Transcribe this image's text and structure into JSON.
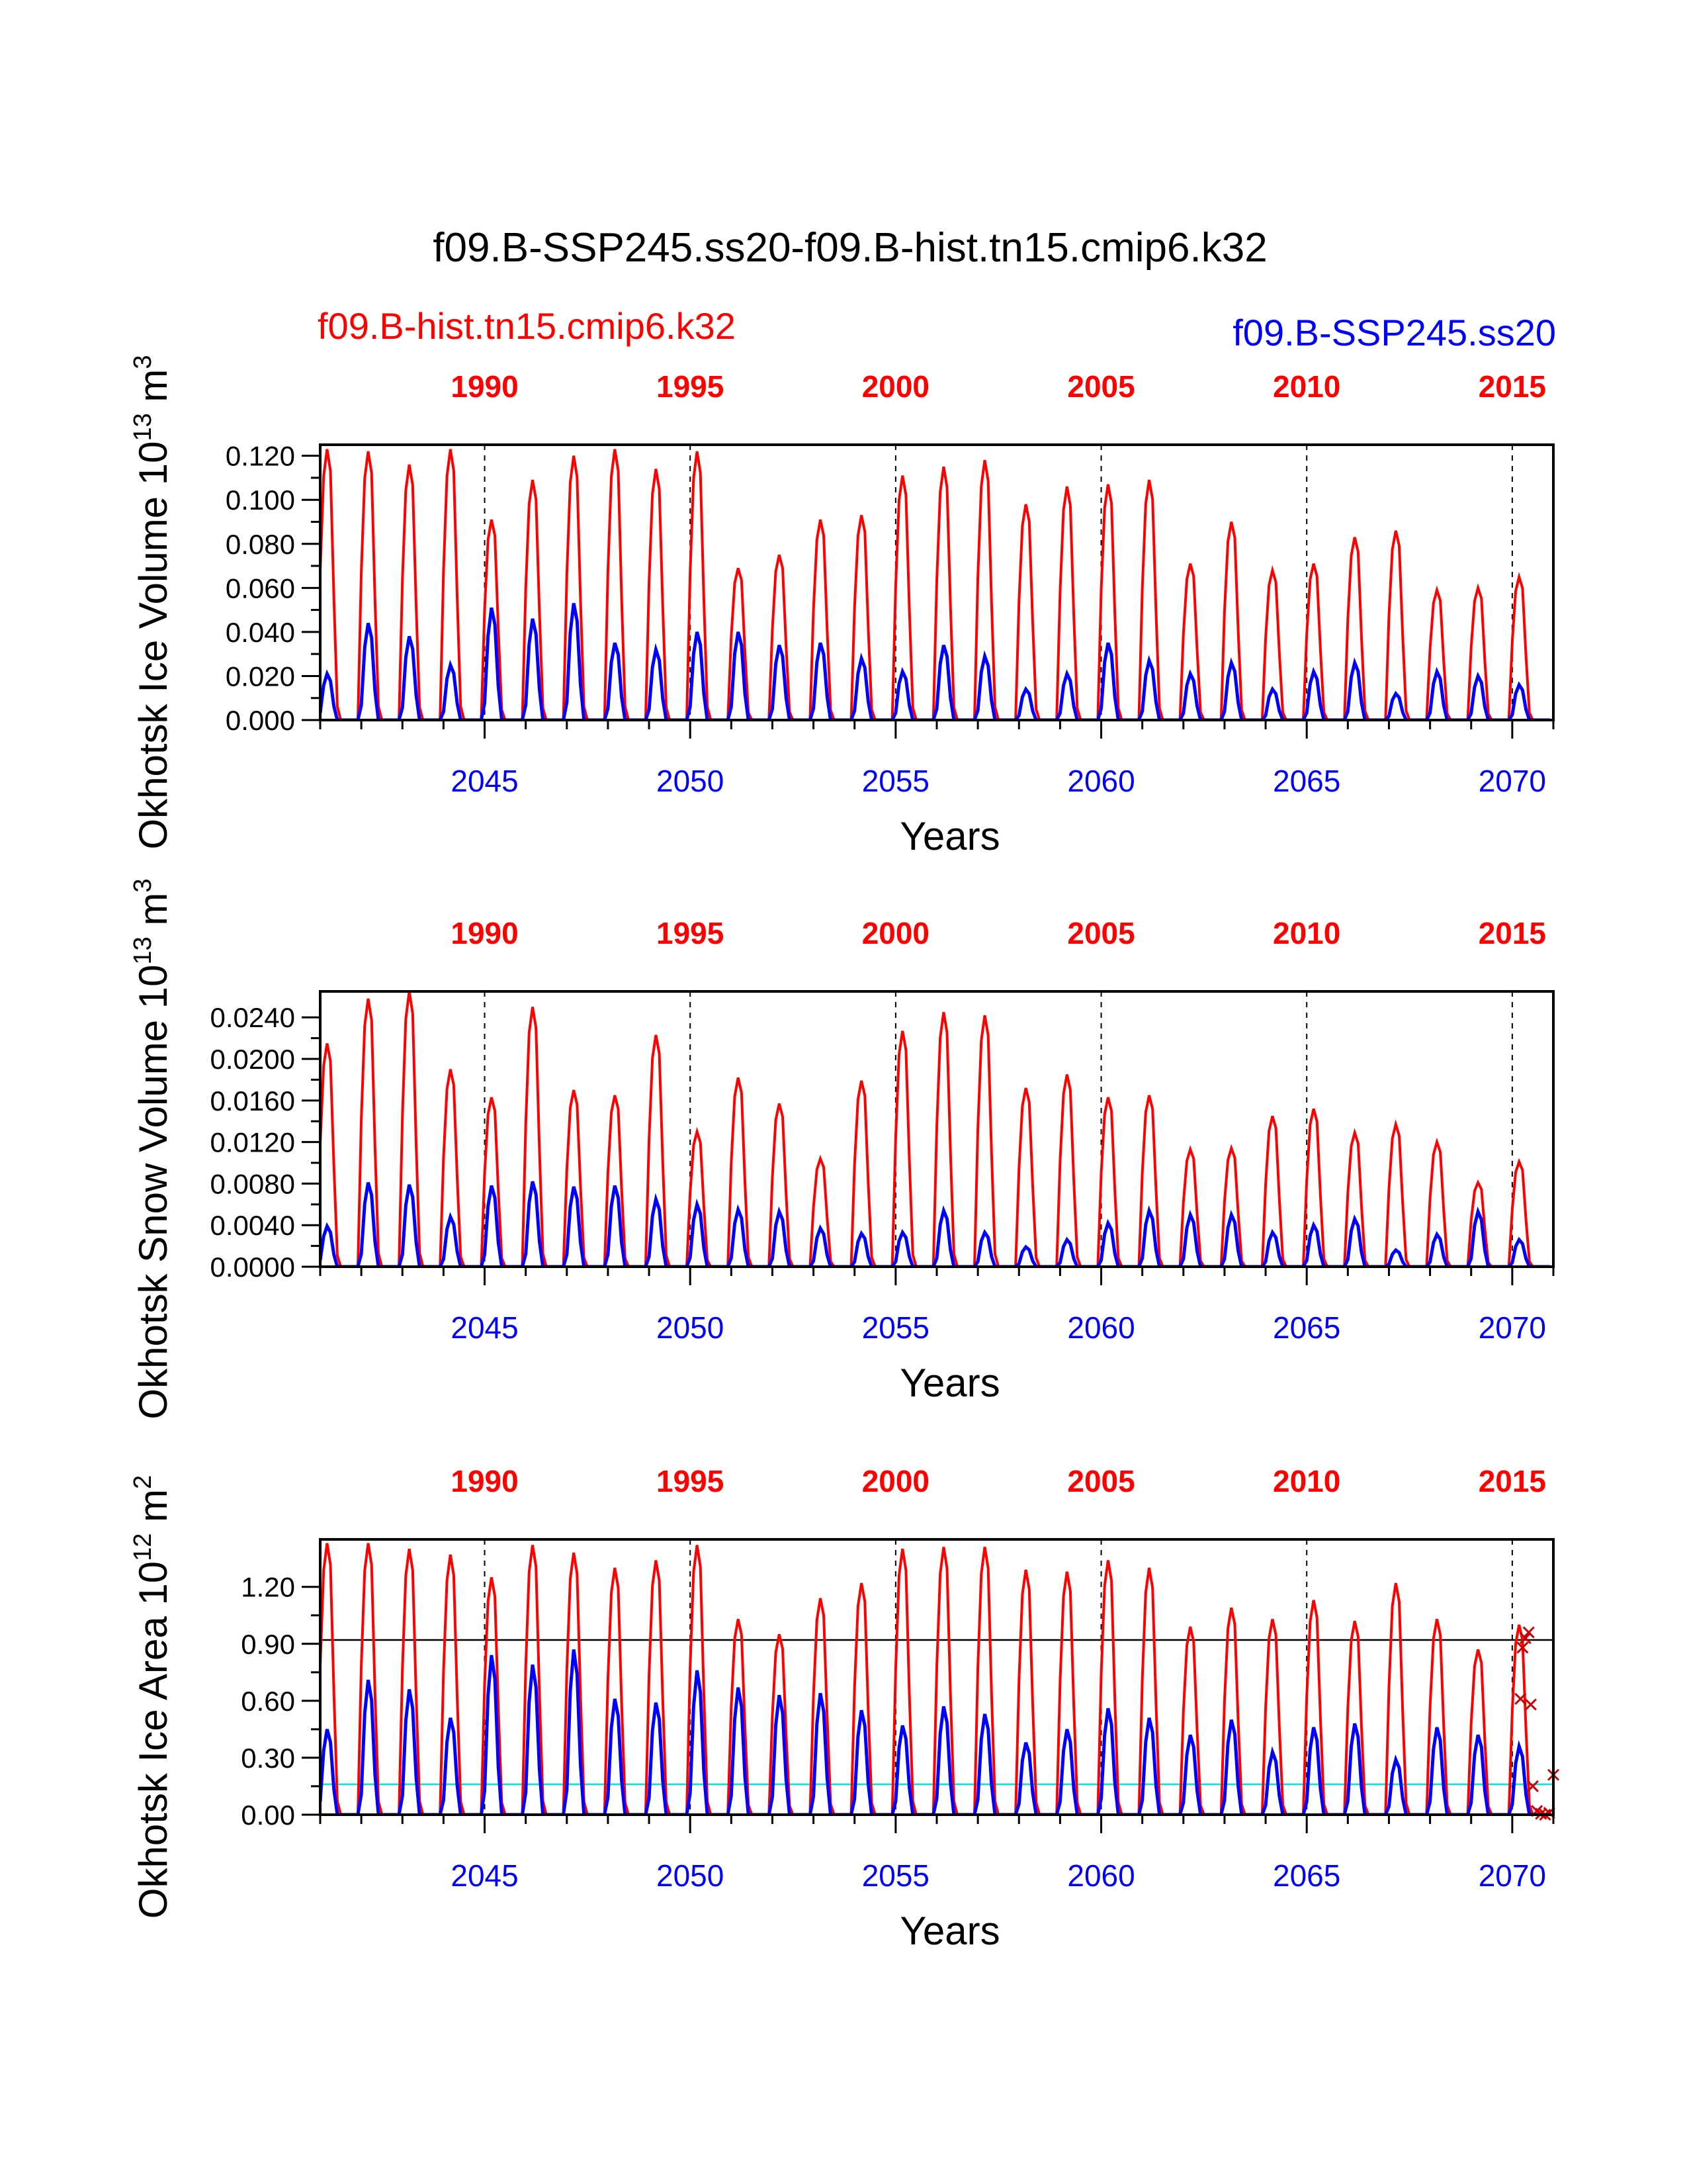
{
  "figure": {
    "title": "f09.B-SSP245.ss20-f09.B-hist.tn15.cmip6.k32",
    "legend_left": "f09.B-hist.tn15.cmip6.k32",
    "legend_right": "f09.B-SSP245.ss20",
    "colors": {
      "hist": "#ff0000",
      "ssp": "#0000ff",
      "axis": "#000000",
      "ref_line": "#000000",
      "ref_line_cyan": "#00e5e5"
    }
  },
  "chart_data": [
    {
      "type": "line",
      "name": "ice-volume",
      "ylabel": "Okhotsk Ice Volume 10^13 m^3",
      "ylabel_base": "Okhotsk Ice Volume 10",
      "ylabel_exp": "13",
      "ylabel_unit": "m",
      "ylabel_unit_exp": "3",
      "xlabel": "Years",
      "ylim": [
        0,
        0.125
      ],
      "yticks": [
        0.0,
        0.02,
        0.04,
        0.06,
        0.08,
        0.1,
        0.12
      ],
      "ytick_labels": [
        "0.000",
        "0.020",
        "0.040",
        "0.060",
        "0.080",
        "0.100",
        "0.120"
      ],
      "x_bottom_range": [
        2041,
        2071
      ],
      "x_bottom_ticks": [
        2045,
        2050,
        2055,
        2060,
        2065,
        2070
      ],
      "x_top_ticks": [
        1990,
        1995,
        2000,
        2005,
        2010,
        2015
      ],
      "x_top_offset": 55,
      "peaks_hist": [
        0.123,
        0.122,
        0.116,
        0.123,
        0.091,
        0.109,
        0.12,
        0.123,
        0.114,
        0.122,
        0.069,
        0.075,
        0.091,
        0.093,
        0.111,
        0.115,
        0.118,
        0.098,
        0.106,
        0.107,
        0.109,
        0.071,
        0.09,
        0.068,
        0.071,
        0.083,
        0.086,
        0.059,
        0.06,
        0.065
      ],
      "peaks_ssp": [
        0.021,
        0.044,
        0.038,
        0.025,
        0.051,
        0.046,
        0.053,
        0.035,
        0.032,
        0.04,
        0.04,
        0.034,
        0.035,
        0.028,
        0.022,
        0.034,
        0.029,
        0.014,
        0.021,
        0.035,
        0.027,
        0.021,
        0.026,
        0.014,
        0.022,
        0.026,
        0.012,
        0.022,
        0.02,
        0.016
      ],
      "hlines": [],
      "markers": []
    },
    {
      "type": "line",
      "name": "snow-volume",
      "ylabel": "Okhotsk Snow Volume 10^13 m^3",
      "ylabel_base": "Okhotsk Snow Volume 10",
      "ylabel_exp": "13",
      "ylabel_unit": "m",
      "ylabel_unit_exp": "3",
      "xlabel": "Years",
      "ylim": [
        0,
        0.0265
      ],
      "yticks": [
        0.0,
        0.004,
        0.008,
        0.012,
        0.016,
        0.02,
        0.024
      ],
      "ytick_labels": [
        "0.0000",
        "0.0040",
        "0.0080",
        "0.0120",
        "0.0160",
        "0.0200",
        "0.0240"
      ],
      "x_bottom_range": [
        2041,
        2071
      ],
      "x_bottom_ticks": [
        2045,
        2050,
        2055,
        2060,
        2065,
        2070
      ],
      "x_top_ticks": [
        1990,
        1995,
        2000,
        2005,
        2010,
        2015
      ],
      "x_top_offset": 55,
      "peaks_hist": [
        0.0215,
        0.0258,
        0.0265,
        0.019,
        0.0163,
        0.025,
        0.017,
        0.0165,
        0.0223,
        0.013,
        0.0182,
        0.0157,
        0.0104,
        0.0179,
        0.0227,
        0.0245,
        0.0242,
        0.0172,
        0.0185,
        0.0163,
        0.0165,
        0.0113,
        0.0114,
        0.0145,
        0.0152,
        0.0129,
        0.0137,
        0.012,
        0.0081,
        0.0101
      ],
      "peaks_ssp": [
        0.0039,
        0.0081,
        0.0079,
        0.0048,
        0.0078,
        0.0082,
        0.0077,
        0.0078,
        0.0065,
        0.006,
        0.0055,
        0.0053,
        0.0037,
        0.0032,
        0.0033,
        0.0054,
        0.0033,
        0.0019,
        0.0026,
        0.0042,
        0.0054,
        0.005,
        0.005,
        0.0033,
        0.004,
        0.0046,
        0.0016,
        0.0031,
        0.0053,
        0.0026
      ],
      "hlines": [],
      "markers": []
    },
    {
      "type": "line",
      "name": "ice-area",
      "ylabel": "Okhotsk Ice Area 10^12 m^2",
      "ylabel_base": "Okhotsk Ice Area 10",
      "ylabel_exp": "12",
      "ylabel_unit": "m",
      "ylabel_unit_exp": "2",
      "xlabel": "Years",
      "ylim": [
        0,
        1.45
      ],
      "yticks": [
        0.0,
        0.3,
        0.6,
        0.9,
        1.2
      ],
      "ytick_labels": [
        "0.00",
        "0.30",
        "0.60",
        "0.90",
        "1.20"
      ],
      "x_bottom_range": [
        2041,
        2071
      ],
      "x_bottom_ticks": [
        2045,
        2050,
        2055,
        2060,
        2065,
        2070
      ],
      "x_top_ticks": [
        1990,
        1995,
        2000,
        2005,
        2010,
        2015
      ],
      "x_top_offset": 55,
      "peaks_hist": [
        1.43,
        1.43,
        1.4,
        1.37,
        1.25,
        1.42,
        1.38,
        1.3,
        1.34,
        1.42,
        1.03,
        0.95,
        1.14,
        1.22,
        1.4,
        1.41,
        1.41,
        1.29,
        1.28,
        1.34,
        1.3,
        0.99,
        1.09,
        1.03,
        1.13,
        1.02,
        1.22,
        1.03,
        0.87,
        1.0
      ],
      "peaks_ssp": [
        0.45,
        0.71,
        0.66,
        0.51,
        0.84,
        0.79,
        0.87,
        0.61,
        0.59,
        0.76,
        0.67,
        0.63,
        0.64,
        0.55,
        0.47,
        0.57,
        0.53,
        0.38,
        0.45,
        0.56,
        0.51,
        0.42,
        0.5,
        0.33,
        0.46,
        0.48,
        0.29,
        0.46,
        0.42,
        0.36
      ],
      "hlines": [
        {
          "y": 0.92,
          "color": "#000000"
        },
        {
          "y": 0.16,
          "color": "#00e5e5"
        }
      ],
      "markers": [
        {
          "x": 2070.25,
          "y": 0.88
        },
        {
          "x": 2070.32,
          "y": 0.93
        },
        {
          "x": 2070.4,
          "y": 0.96
        },
        {
          "x": 2070.2,
          "y": 0.61
        },
        {
          "x": 2070.45,
          "y": 0.58
        },
        {
          "x": 2070.5,
          "y": 0.15
        },
        {
          "x": 2070.6,
          "y": 0.02
        },
        {
          "x": 2070.7,
          "y": 0.005
        },
        {
          "x": 2070.8,
          "y": 0.0
        },
        {
          "x": 2070.9,
          "y": 0.01
        },
        {
          "x": 2071.0,
          "y": 0.21
        }
      ]
    }
  ]
}
